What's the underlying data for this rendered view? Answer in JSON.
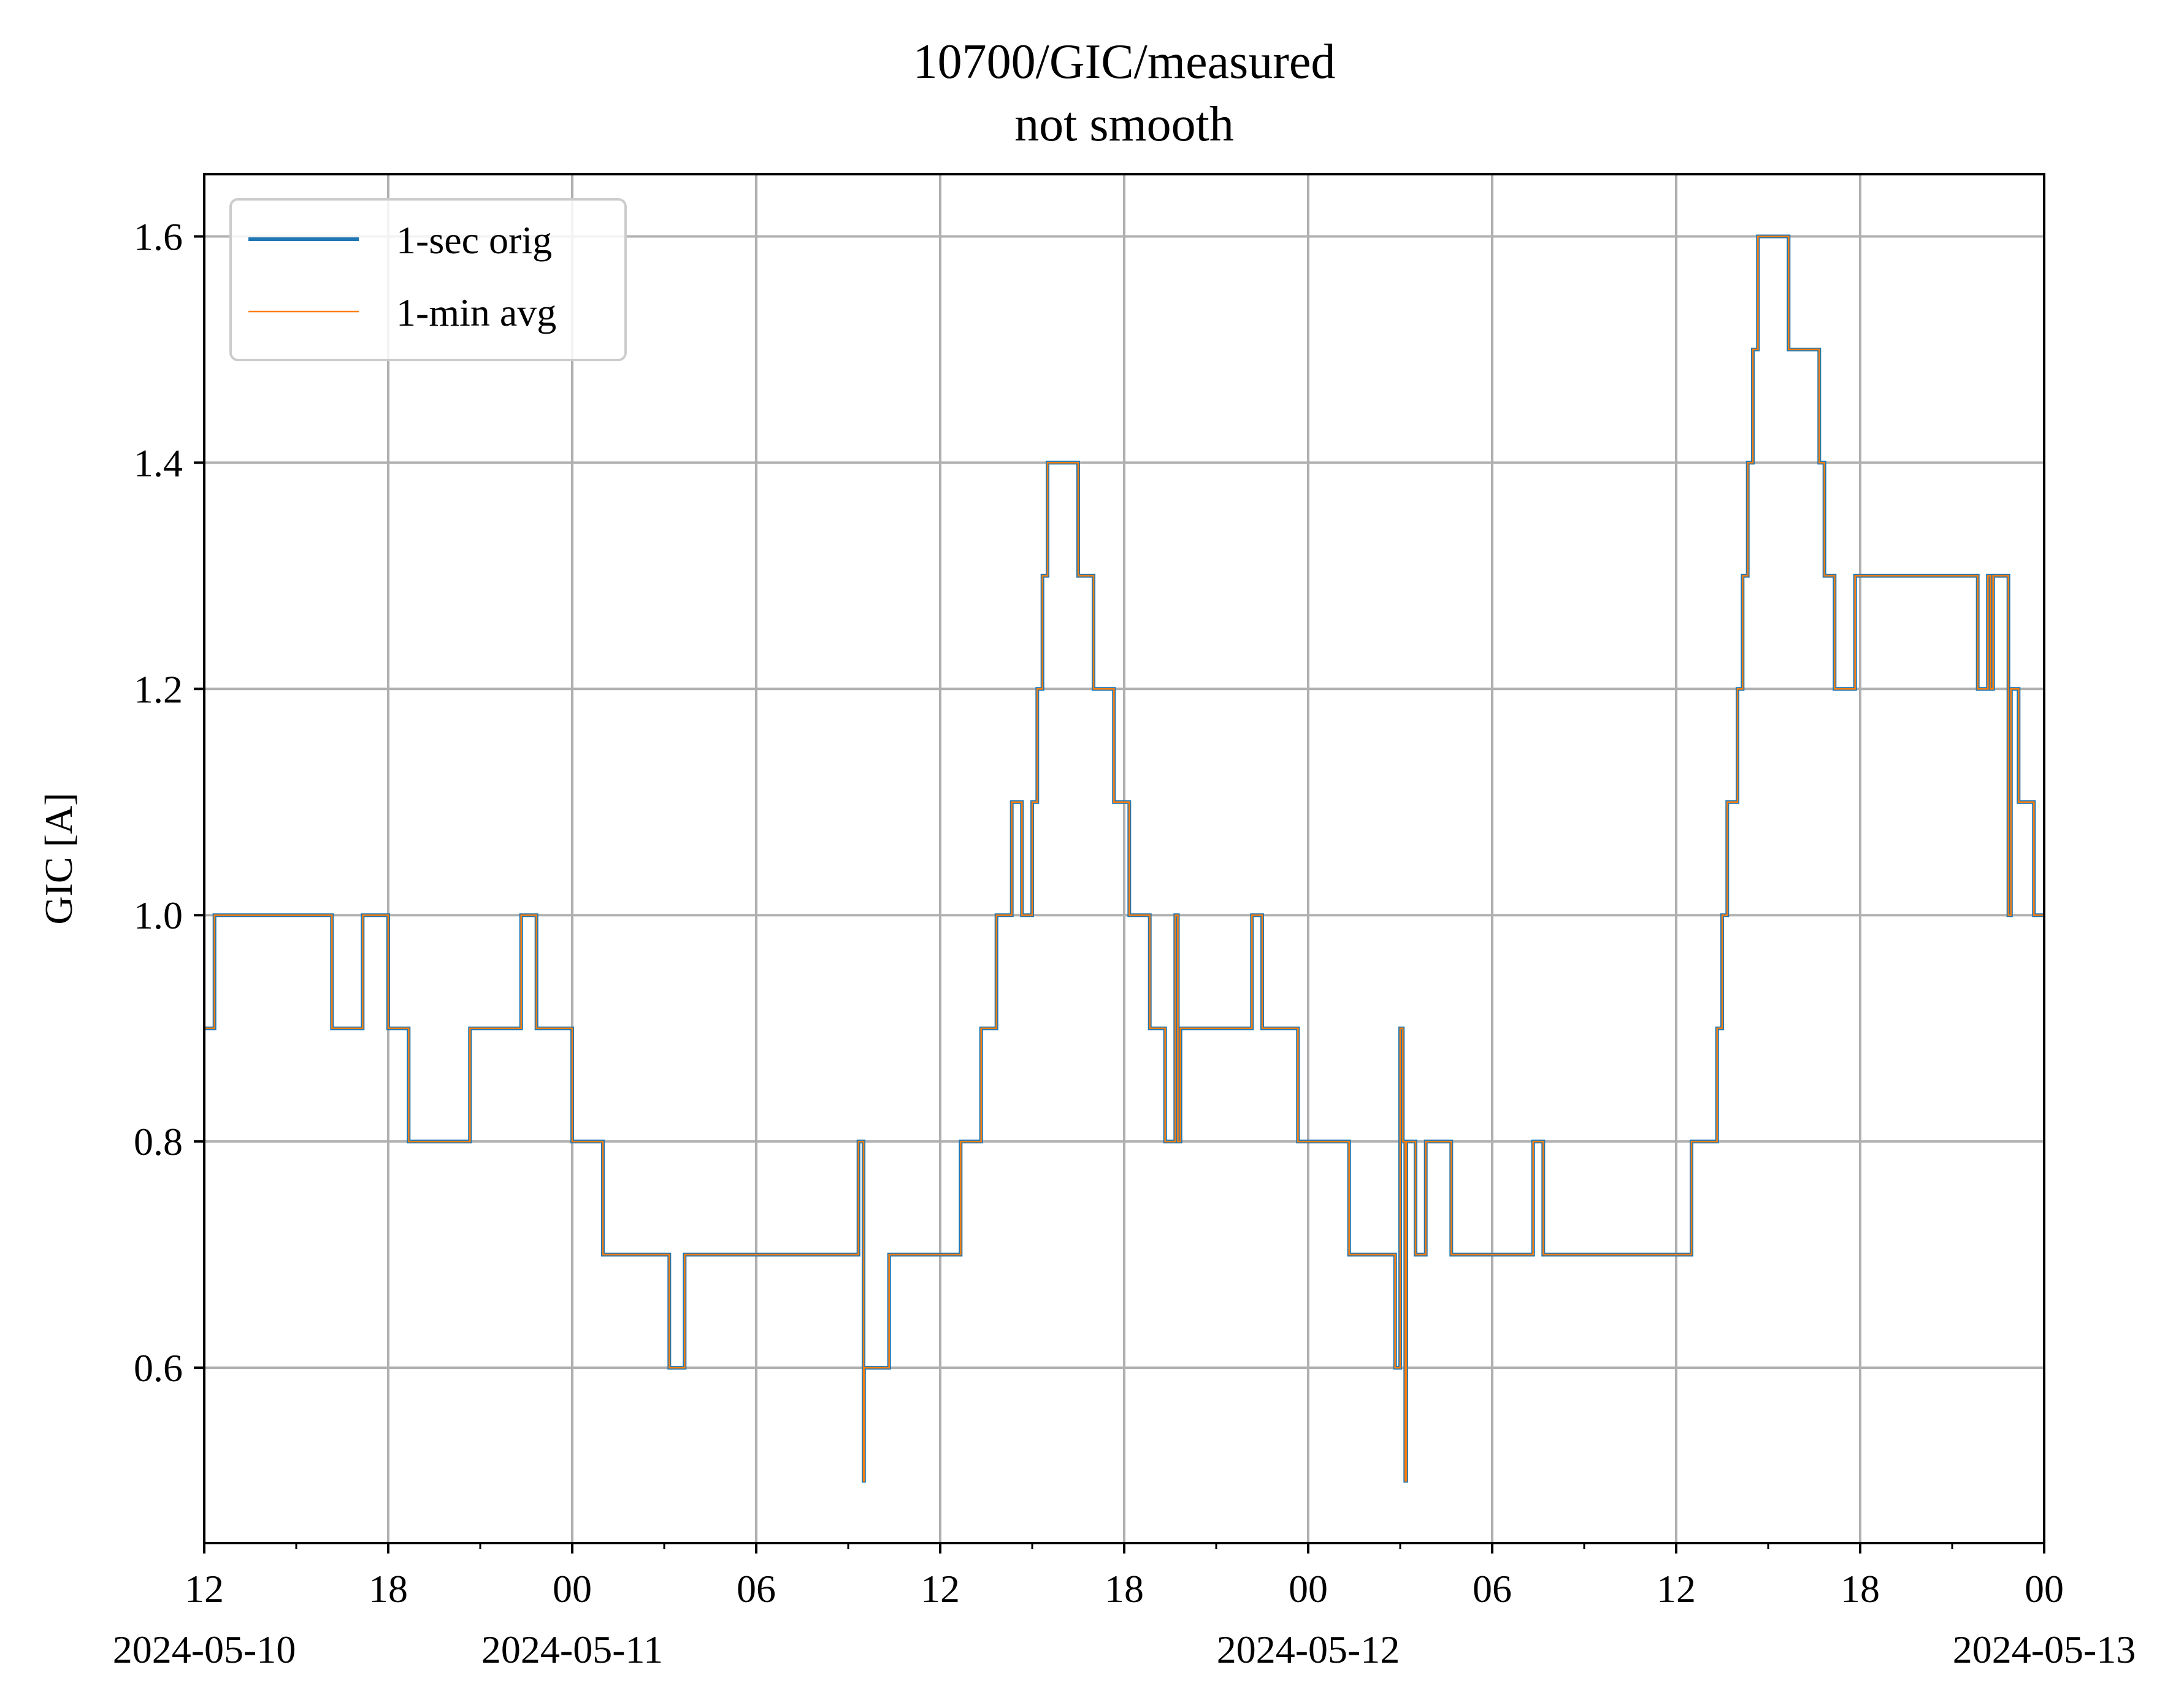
{
  "chart_data": {
    "type": "line",
    "title": "10700/GIC/measured",
    "subtitle": "not smooth",
    "xlabel": "",
    "ylabel": "GIC [A]",
    "xlim": [
      "2024-05-10T12:00",
      "2024-05-13T00:00"
    ],
    "ylim": [
      0.445,
      1.655
    ],
    "grid": true,
    "legend_position": "top-left",
    "x_major_ticks": [
      {
        "t": "2024-05-10T12:00",
        "label": "12",
        "date": "2024-05-10"
      },
      {
        "t": "2024-05-10T18:00",
        "label": "18",
        "date": ""
      },
      {
        "t": "2024-05-11T00:00",
        "label": "00",
        "date": "2024-05-11"
      },
      {
        "t": "2024-05-11T06:00",
        "label": "06",
        "date": ""
      },
      {
        "t": "2024-05-11T12:00",
        "label": "12",
        "date": ""
      },
      {
        "t": "2024-05-11T18:00",
        "label": "18",
        "date": ""
      },
      {
        "t": "2024-05-12T00:00",
        "label": "00",
        "date": "2024-05-12"
      },
      {
        "t": "2024-05-12T06:00",
        "label": "06",
        "date": ""
      },
      {
        "t": "2024-05-12T12:00",
        "label": "12",
        "date": ""
      },
      {
        "t": "2024-05-12T18:00",
        "label": "18",
        "date": ""
      },
      {
        "t": "2024-05-13T00:00",
        "label": "00",
        "date": "2024-05-13"
      }
    ],
    "x_minor_ticks": [
      "2024-05-10T15:00",
      "2024-05-10T21:00",
      "2024-05-11T03:00",
      "2024-05-11T09:00",
      "2024-05-11T15:00",
      "2024-05-11T21:00",
      "2024-05-12T03:00",
      "2024-05-12T09:00",
      "2024-05-12T15:00",
      "2024-05-12T21:00"
    ],
    "y_ticks": [
      {
        "v": 0.6,
        "label": "0.6"
      },
      {
        "v": 0.8,
        "label": "0.8"
      },
      {
        "v": 1.0,
        "label": "1.0"
      },
      {
        "v": 1.2,
        "label": "1.2"
      },
      {
        "v": 1.4,
        "label": "1.4"
      },
      {
        "v": 1.6,
        "label": "1.6"
      }
    ],
    "series": [
      {
        "name": "1-sec orig",
        "color": "#1f77b4",
        "step": "post",
        "points": [
          [
            "2024-05-10T12:00",
            0.9
          ],
          [
            "2024-05-10T12:20",
            1.0
          ],
          [
            "2024-05-10T16:10",
            0.9
          ],
          [
            "2024-05-10T17:10",
            1.0
          ],
          [
            "2024-05-10T18:00",
            0.9
          ],
          [
            "2024-05-10T18:40",
            0.8
          ],
          [
            "2024-05-10T20:40",
            0.9
          ],
          [
            "2024-05-10T22:20",
            1.0
          ],
          [
            "2024-05-10T22:50",
            0.9
          ],
          [
            "2024-05-11T00:00",
            0.8
          ],
          [
            "2024-05-11T01:00",
            0.7
          ],
          [
            "2024-05-11T03:10",
            0.6
          ],
          [
            "2024-05-11T03:40",
            0.7
          ],
          [
            "2024-05-11T09:20",
            0.8
          ],
          [
            "2024-05-11T09:30",
            0.5
          ],
          [
            "2024-05-11T09:31",
            0.6
          ],
          [
            "2024-05-11T10:20",
            0.7
          ],
          [
            "2024-05-11T12:40",
            0.8
          ],
          [
            "2024-05-11T13:20",
            0.9
          ],
          [
            "2024-05-11T13:50",
            1.0
          ],
          [
            "2024-05-11T14:20",
            1.1
          ],
          [
            "2024-05-11T14:40",
            1.0
          ],
          [
            "2024-05-11T15:00",
            1.1
          ],
          [
            "2024-05-11T15:10",
            1.2
          ],
          [
            "2024-05-11T15:20",
            1.3
          ],
          [
            "2024-05-11T15:30",
            1.4
          ],
          [
            "2024-05-11T16:30",
            1.3
          ],
          [
            "2024-05-11T17:00",
            1.2
          ],
          [
            "2024-05-11T17:40",
            1.1
          ],
          [
            "2024-05-11T18:10",
            1.0
          ],
          [
            "2024-05-11T18:50",
            0.9
          ],
          [
            "2024-05-11T19:20",
            0.8
          ],
          [
            "2024-05-11T19:40",
            1.0
          ],
          [
            "2024-05-11T19:45",
            0.8
          ],
          [
            "2024-05-11T19:50",
            0.9
          ],
          [
            "2024-05-11T22:10",
            1.0
          ],
          [
            "2024-05-11T22:30",
            0.9
          ],
          [
            "2024-05-11T23:40",
            0.8
          ],
          [
            "2024-05-12T01:20",
            0.7
          ],
          [
            "2024-05-12T02:50",
            0.6
          ],
          [
            "2024-05-12T03:00",
            0.9
          ],
          [
            "2024-05-12T03:05",
            0.8
          ],
          [
            "2024-05-12T03:10",
            0.5
          ],
          [
            "2024-05-12T03:12",
            0.8
          ],
          [
            "2024-05-12T03:30",
            0.7
          ],
          [
            "2024-05-12T03:50",
            0.8
          ],
          [
            "2024-05-12T04:40",
            0.7
          ],
          [
            "2024-05-12T07:20",
            0.8
          ],
          [
            "2024-05-12T07:40",
            0.7
          ],
          [
            "2024-05-12T12:30",
            0.8
          ],
          [
            "2024-05-12T13:20",
            0.9
          ],
          [
            "2024-05-12T13:30",
            1.0
          ],
          [
            "2024-05-12T13:40",
            1.1
          ],
          [
            "2024-05-12T14:00",
            1.2
          ],
          [
            "2024-05-12T14:10",
            1.3
          ],
          [
            "2024-05-12T14:20",
            1.4
          ],
          [
            "2024-05-12T14:30",
            1.5
          ],
          [
            "2024-05-12T14:40",
            1.6
          ],
          [
            "2024-05-12T15:40",
            1.5
          ],
          [
            "2024-05-12T16:40",
            1.4
          ],
          [
            "2024-05-12T16:50",
            1.3
          ],
          [
            "2024-05-12T17:10",
            1.2
          ],
          [
            "2024-05-12T17:50",
            1.3
          ],
          [
            "2024-05-12T21:50",
            1.2
          ],
          [
            "2024-05-12T22:10",
            1.3
          ],
          [
            "2024-05-12T22:15",
            1.2
          ],
          [
            "2024-05-12T22:20",
            1.3
          ],
          [
            "2024-05-12T22:50",
            1.0
          ],
          [
            "2024-05-12T22:55",
            1.2
          ],
          [
            "2024-05-12T23:10",
            1.1
          ],
          [
            "2024-05-12T23:40",
            1.0
          ],
          [
            "2024-05-13T00:00",
            1.0
          ]
        ]
      },
      {
        "name": "1-min avg",
        "color": "#ff7f0e",
        "step": "post",
        "points": [
          [
            "2024-05-10T12:00",
            0.9
          ],
          [
            "2024-05-10T12:20",
            1.0
          ],
          [
            "2024-05-10T16:10",
            0.9
          ],
          [
            "2024-05-10T17:10",
            1.0
          ],
          [
            "2024-05-10T18:00",
            0.9
          ],
          [
            "2024-05-10T18:40",
            0.8
          ],
          [
            "2024-05-10T20:40",
            0.9
          ],
          [
            "2024-05-10T22:20",
            1.0
          ],
          [
            "2024-05-10T22:50",
            0.9
          ],
          [
            "2024-05-11T00:00",
            0.8
          ],
          [
            "2024-05-11T01:00",
            0.7
          ],
          [
            "2024-05-11T03:10",
            0.6
          ],
          [
            "2024-05-11T03:40",
            0.7
          ],
          [
            "2024-05-11T09:20",
            0.8
          ],
          [
            "2024-05-11T09:30",
            0.5
          ],
          [
            "2024-05-11T09:31",
            0.6
          ],
          [
            "2024-05-11T10:20",
            0.7
          ],
          [
            "2024-05-11T12:40",
            0.8
          ],
          [
            "2024-05-11T13:20",
            0.9
          ],
          [
            "2024-05-11T13:50",
            1.0
          ],
          [
            "2024-05-11T14:20",
            1.1
          ],
          [
            "2024-05-11T14:40",
            1.0
          ],
          [
            "2024-05-11T15:00",
            1.1
          ],
          [
            "2024-05-11T15:10",
            1.2
          ],
          [
            "2024-05-11T15:20",
            1.3
          ],
          [
            "2024-05-11T15:30",
            1.4
          ],
          [
            "2024-05-11T16:30",
            1.3
          ],
          [
            "2024-05-11T17:00",
            1.2
          ],
          [
            "2024-05-11T17:40",
            1.1
          ],
          [
            "2024-05-11T18:10",
            1.0
          ],
          [
            "2024-05-11T18:50",
            0.9
          ],
          [
            "2024-05-11T19:20",
            0.8
          ],
          [
            "2024-05-11T19:40",
            1.0
          ],
          [
            "2024-05-11T19:45",
            0.8
          ],
          [
            "2024-05-11T19:50",
            0.9
          ],
          [
            "2024-05-11T22:10",
            1.0
          ],
          [
            "2024-05-11T22:30",
            0.9
          ],
          [
            "2024-05-11T23:40",
            0.8
          ],
          [
            "2024-05-12T01:20",
            0.7
          ],
          [
            "2024-05-12T02:50",
            0.6
          ],
          [
            "2024-05-12T03:00",
            0.9
          ],
          [
            "2024-05-12T03:05",
            0.8
          ],
          [
            "2024-05-12T03:10",
            0.5
          ],
          [
            "2024-05-12T03:12",
            0.8
          ],
          [
            "2024-05-12T03:30",
            0.7
          ],
          [
            "2024-05-12T03:50",
            0.8
          ],
          [
            "2024-05-12T04:40",
            0.7
          ],
          [
            "2024-05-12T07:20",
            0.8
          ],
          [
            "2024-05-12T07:40",
            0.7
          ],
          [
            "2024-05-12T12:30",
            0.8
          ],
          [
            "2024-05-12T13:20",
            0.9
          ],
          [
            "2024-05-12T13:30",
            1.0
          ],
          [
            "2024-05-12T13:40",
            1.1
          ],
          [
            "2024-05-12T14:00",
            1.2
          ],
          [
            "2024-05-12T14:10",
            1.3
          ],
          [
            "2024-05-12T14:20",
            1.4
          ],
          [
            "2024-05-12T14:30",
            1.5
          ],
          [
            "2024-05-12T14:40",
            1.6
          ],
          [
            "2024-05-12T15:40",
            1.5
          ],
          [
            "2024-05-12T16:40",
            1.4
          ],
          [
            "2024-05-12T16:50",
            1.3
          ],
          [
            "2024-05-12T17:10",
            1.2
          ],
          [
            "2024-05-12T17:50",
            1.3
          ],
          [
            "2024-05-12T21:50",
            1.2
          ],
          [
            "2024-05-12T22:10",
            1.3
          ],
          [
            "2024-05-12T22:15",
            1.2
          ],
          [
            "2024-05-12T22:20",
            1.3
          ],
          [
            "2024-05-12T22:50",
            1.0
          ],
          [
            "2024-05-12T22:55",
            1.2
          ],
          [
            "2024-05-12T23:10",
            1.1
          ],
          [
            "2024-05-12T23:40",
            1.0
          ],
          [
            "2024-05-13T00:00",
            1.0
          ]
        ]
      }
    ]
  }
}
